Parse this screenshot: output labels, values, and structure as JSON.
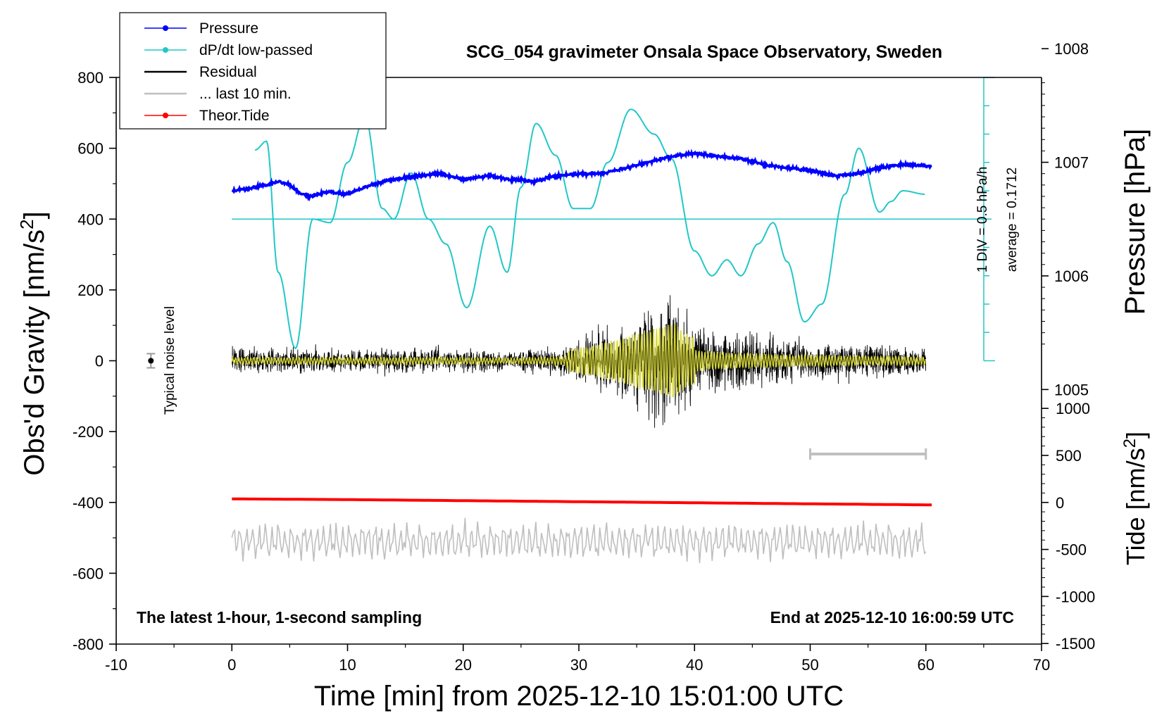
{
  "chart_data": {
    "type": "line",
    "title": "SCG_054 gravimeter Onsala Space Observatory, Sweden",
    "xlabel": "Time [min] from 2025-12-10 15:01:00 UTC",
    "ylabel_left": "Obs'd Gravity [nm/s",
    "ylabel_left_sup": "2",
    "ylabel_left_end": "]",
    "ylabel_right_top": "Pressure [hPa]",
    "ylabel_right_bottom": "Tide [nm/s",
    "ylabel_right_bottom_sup": "2",
    "ylabel_right_bottom_end": "]",
    "xlim": [
      -10,
      70
    ],
    "ylim_left": [
      -800,
      800
    ],
    "x_ticks": [
      "-10",
      "0",
      "10",
      "20",
      "30",
      "40",
      "50",
      "60",
      "70"
    ],
    "y_ticks_left": [
      "800",
      "600",
      "400",
      "200",
      "0",
      "-200",
      "-400",
      "-600",
      "-800"
    ],
    "pressure_ticks": [
      "1008",
      "1007",
      "1006",
      "1005"
    ],
    "tide_ticks": [
      "1000",
      "500",
      "0",
      "-500",
      "-1000",
      "-1500"
    ],
    "legend": {
      "position": "top-left",
      "entries": [
        {
          "label": "Pressure",
          "color": "#0000ff",
          "marker": true
        },
        {
          "label": "dP/dt low-passed",
          "color": "#22c7c7",
          "marker": true
        },
        {
          "label": "Residual",
          "color": "#000000",
          "marker": false
        },
        {
          "label": "... last 10 min.",
          "color": "#bfbfbf",
          "marker": false
        },
        {
          "label": "Theor.Tide",
          "color": "#ff0000",
          "marker": true
        }
      ]
    },
    "annotations": {
      "bottom_left": "The latest 1-hour, 1-second sampling",
      "bottom_right": "End at 2025-12-10 16:00:59 UTC",
      "noise_label": "Typical noise level",
      "div_label": "1 DIV = 0.5 hPa/h",
      "average_label": "average = 0.1712"
    },
    "series": [
      {
        "name": "Pressure",
        "color": "#0000ff",
        "units": "hPa",
        "x": [
          0,
          2,
          4,
          5,
          6,
          7,
          8,
          10,
          12,
          14,
          16,
          18,
          20,
          22,
          24,
          26,
          28,
          30,
          32,
          34,
          36,
          38,
          40,
          42,
          44,
          46,
          48,
          50,
          52,
          54,
          56,
          58,
          60
        ],
        "values": [
          1006.75,
          1006.78,
          1006.83,
          1006.8,
          1006.72,
          1006.7,
          1006.74,
          1006.72,
          1006.8,
          1006.85,
          1006.88,
          1006.9,
          1006.85,
          1006.88,
          1006.85,
          1006.83,
          1006.88,
          1006.9,
          1006.9,
          1006.95,
          1007.0,
          1007.05,
          1007.08,
          1007.05,
          1007.03,
          1006.98,
          1006.95,
          1006.93,
          1006.88,
          1006.9,
          1006.95,
          1006.98,
          1006.97
        ]
      },
      {
        "name": "dP/dt low-passed",
        "color": "#22c7c7",
        "units": "nm/s2 display",
        "x": [
          2,
          3,
          4,
          5.5,
          7,
          8.5,
          10,
          11.5,
          13,
          14,
          15.5,
          17,
          18.5,
          20.3,
          22.3,
          23.8,
          25,
          26.3,
          28,
          29.5,
          31,
          32.5,
          34.5,
          36.5,
          38,
          40,
          41.5,
          42.8,
          44,
          45.5,
          46.8,
          48,
          49.5,
          51,
          53,
          54.2,
          56,
          57,
          58,
          60
        ],
        "values": [
          595,
          620,
          250,
          35,
          400,
          390,
          560,
          690,
          430,
          400,
          530,
          400,
          330,
          150,
          380,
          250,
          490,
          670,
          580,
          430,
          430,
          560,
          710,
          640,
          570,
          310,
          240,
          285,
          240,
          330,
          390,
          280,
          110,
          160,
          470,
          600,
          420,
          450,
          480,
          470
        ]
      },
      {
        "name": "Residual",
        "color": "#000000",
        "units": "nm/s2",
        "x": [
          0,
          5,
          10,
          15,
          20,
          25,
          28,
          30,
          33,
          35,
          36.5,
          38.3,
          39,
          40,
          42,
          45,
          48,
          52,
          56,
          60
        ],
        "envelope": [
          60,
          60,
          55,
          60,
          55,
          50,
          70,
          110,
          170,
          230,
          270,
          320,
          240,
          200,
          160,
          130,
          110,
          90,
          80,
          70
        ]
      },
      {
        "name": "... last 10 min.",
        "color": "#bfbfbf",
        "units": "nm/s2 display",
        "x_range": [
          0,
          60
        ],
        "center": -510,
        "amplitude": 60
      },
      {
        "name": "Theor.Tide",
        "color": "#ff0000",
        "units": "nm/s2 display",
        "x": [
          0,
          10,
          20,
          30,
          40,
          50,
          60.5
        ],
        "values": [
          -390,
          -392,
          -395,
          -398,
          -401,
          -404,
          -407
        ]
      }
    ],
    "grid": false
  }
}
